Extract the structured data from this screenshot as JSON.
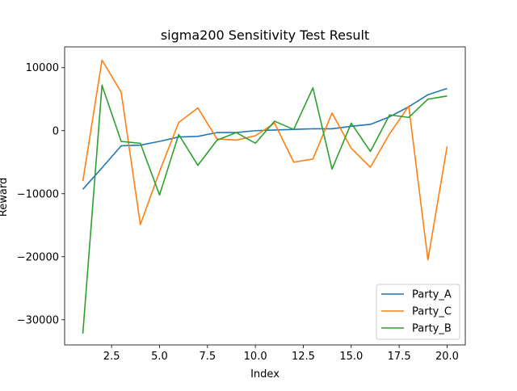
{
  "chart_data": {
    "type": "line",
    "title": "sigma200 Sensitivity Test Result",
    "xlabel": "Index",
    "ylabel": "Reward",
    "xlim": [
      0.05,
      20.95
    ],
    "ylim": [
      -34000,
      13300
    ],
    "x_ticks": [
      2.5,
      5.0,
      7.5,
      10.0,
      12.5,
      15.0,
      17.5,
      20.0
    ],
    "x_tick_labels": [
      "2.5",
      "5.0",
      "7.5",
      "10.0",
      "12.5",
      "15.0",
      "17.5",
      "20.0"
    ],
    "y_ticks": [
      -30000,
      -20000,
      -10000,
      0,
      10000
    ],
    "y_tick_labels": [
      "−30000",
      "−20000",
      "−10000",
      "0",
      "10000"
    ],
    "grid": false,
    "legend_position": "lower-right",
    "x": [
      1,
      2,
      3,
      4,
      5,
      6,
      7,
      8,
      9,
      10,
      11,
      12,
      13,
      14,
      15,
      16,
      17,
      18,
      19,
      20
    ],
    "series": [
      {
        "name": "Party_A",
        "color": "#1f77b4",
        "values": [
          -9300,
          -5900,
          -2400,
          -2300,
          -1700,
          -1000,
          -900,
          -300,
          -300,
          0,
          100,
          200,
          300,
          300,
          700,
          1000,
          2200,
          3800,
          5700,
          6700
        ]
      },
      {
        "name": "Party_C",
        "color": "#ff7f0e",
        "values": [
          -8000,
          11200,
          6100,
          -14900,
          -6500,
          1300,
          3600,
          -1300,
          -1500,
          -800,
          1200,
          -5000,
          -4500,
          2800,
          -2800,
          -5800,
          -500,
          3900,
          -20500,
          -2500
        ]
      },
      {
        "name": "Party_B",
        "color": "#2ca02c",
        "values": [
          -32200,
          7200,
          -1700,
          -2000,
          -10200,
          -600,
          -5500,
          -1500,
          -300,
          -2000,
          1500,
          200,
          6800,
          -6100,
          1200,
          -3300,
          2500,
          2100,
          5000,
          5500
        ]
      }
    ]
  }
}
